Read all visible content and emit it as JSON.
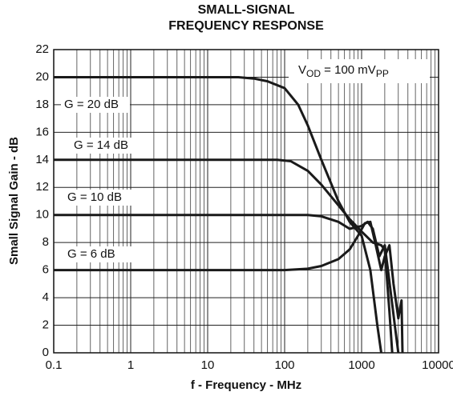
{
  "chart_data": {
    "type": "line",
    "title": [
      "SMALL-SIGNAL",
      "FREQUENCY RESPONSE"
    ],
    "x_label": "f - Frequency - MHz",
    "y_label": "Small Signal Gain - dB",
    "annotation": [
      "V",
      "OD",
      " = 100 mV",
      "PP"
    ],
    "log_x": true,
    "grid": true,
    "xlim": [
      0.1,
      10000
    ],
    "xticks": [
      0.1,
      1,
      10,
      100,
      1000,
      10000
    ],
    "ylim": [
      0,
      22
    ],
    "yticks": [
      0,
      2,
      4,
      6,
      8,
      10,
      12,
      14,
      16,
      18,
      20,
      22
    ],
    "series": [
      {
        "name": "G = 20 dB",
        "color": "#1a1a1a",
        "x": [
          0.1,
          1,
          10,
          25,
          40,
          60,
          100,
          150,
          200,
          300,
          500,
          700,
          1000,
          1300,
          1600,
          1800
        ],
        "values": [
          20,
          20,
          20,
          20,
          19.9,
          19.7,
          19.2,
          18,
          16.5,
          14,
          11,
          9.5,
          8.5,
          6,
          2,
          0
        ]
      },
      {
        "name": "G = 14 dB",
        "color": "#1a1a1a",
        "x": [
          0.1,
          1,
          10,
          80,
          120,
          200,
          300,
          500,
          700,
          1000,
          1400,
          1800,
          2000,
          2300,
          2500
        ],
        "values": [
          14,
          14,
          14,
          14,
          13.9,
          13.2,
          12.2,
          10.7,
          9.7,
          8.8,
          8,
          7.8,
          7.5,
          3,
          0
        ]
      },
      {
        "name": "G = 10 dB",
        "color": "#1a1a1a",
        "x": [
          0.1,
          1,
          10,
          100,
          200,
          300,
          500,
          700,
          1000,
          1200,
          1400,
          1700,
          2000,
          2200,
          2700,
          3000
        ],
        "values": [
          10,
          10,
          10,
          10,
          10,
          9.9,
          9.5,
          9,
          9.2,
          9.5,
          9,
          7,
          7.8,
          6,
          2,
          0
        ]
      },
      {
        "name": "G = 6 dB",
        "color": "#1a1a1a",
        "x": [
          0.1,
          1,
          10,
          100,
          200,
          300,
          500,
          700,
          900,
          1100,
          1300,
          1500,
          1800,
          2000,
          2300,
          2600,
          3000,
          3300,
          3400
        ],
        "values": [
          6,
          6,
          6,
          6,
          6.1,
          6.3,
          6.8,
          7.5,
          8.5,
          9.4,
          9.5,
          8,
          6,
          7,
          7.8,
          5,
          2.5,
          3.8,
          0
        ]
      }
    ]
  }
}
